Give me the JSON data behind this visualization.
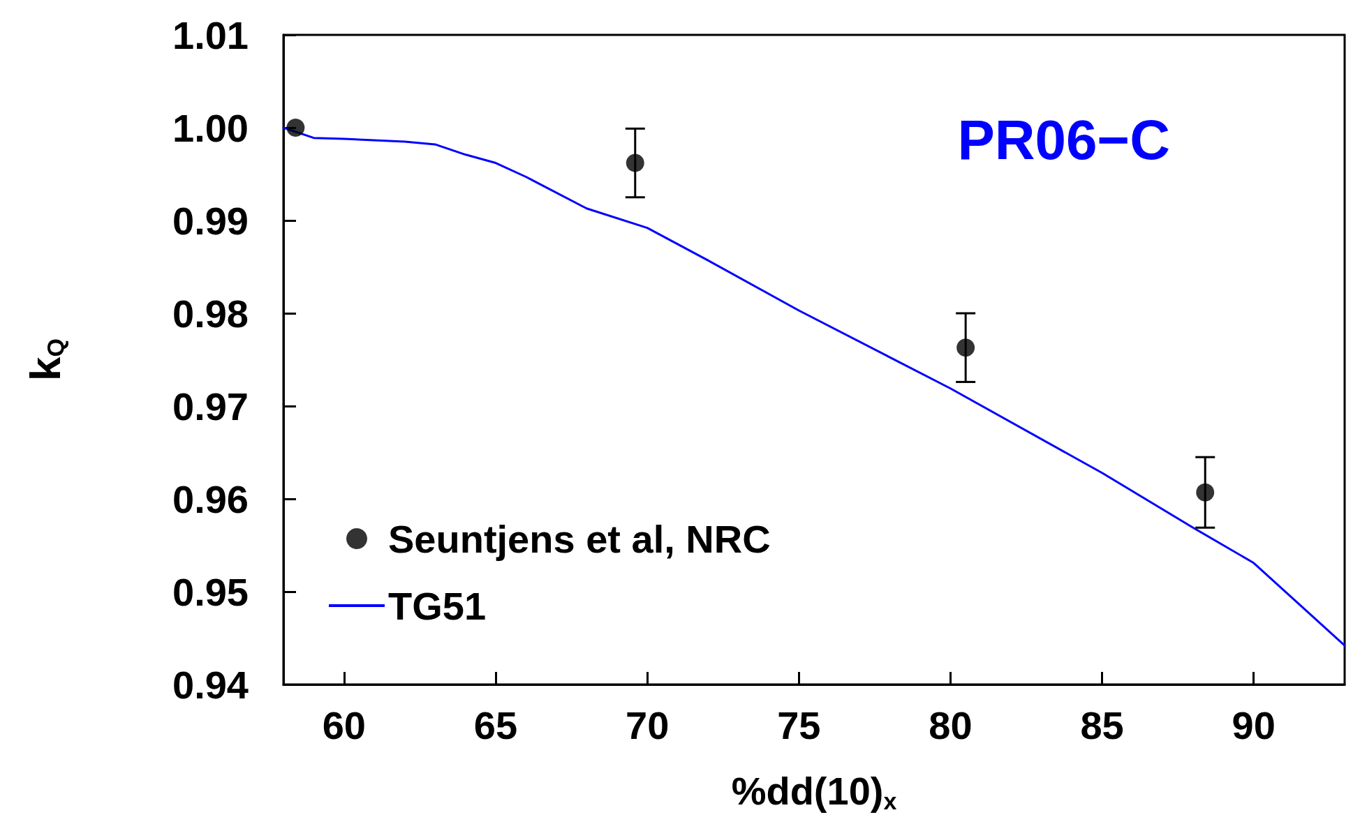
{
  "chart_data": {
    "type": "scatter",
    "xlabel": "%dd(10)$_{x}$",
    "ylabel": "k$_{Q}$",
    "annotations": [
      "PR06−C"
    ],
    "xlim": [
      58,
      93
    ],
    "xticks": [
      60,
      65,
      70,
      75,
      80,
      85,
      90
    ],
    "ylim": [
      0.94,
      1.01
    ],
    "yticks": [
      0.94,
      0.95,
      0.96,
      0.97,
      0.98,
      0.99,
      {
        "value": 1,
        "label": "1.00"
      },
      1.01
    ],
    "grid": false,
    "legend": "bottom left",
    "series": [
      {
        "name": "Seuntjens et al, NRC",
        "color": "#000000",
        "marker": "circle",
        "x": [
          58.4,
          69.6,
          80.5,
          88.4
        ],
        "values": [
          1.0,
          0.9962,
          0.9763,
          0.9607
        ],
        "errors": [
          null,
          0.0037,
          0.0037,
          0.0038
        ]
      },
      {
        "name": "TG51",
        "type": "line",
        "color": "#0000ff",
        "marker": "none",
        "line_style": "solid",
        "x": [
          58,
          59,
          60,
          62,
          63,
          64,
          65,
          66,
          68,
          70,
          72,
          75,
          80,
          85,
          88,
          90,
          93
        ],
        "values": [
          1.0,
          0.9989,
          0.9988,
          0.9985,
          0.9982,
          0.9971,
          0.9962,
          0.9947,
          0.9913,
          0.9892,
          0.9857,
          0.9803,
          0.9719,
          0.9628,
          0.9569,
          0.9531,
          0.9442
        ]
      }
    ]
  }
}
